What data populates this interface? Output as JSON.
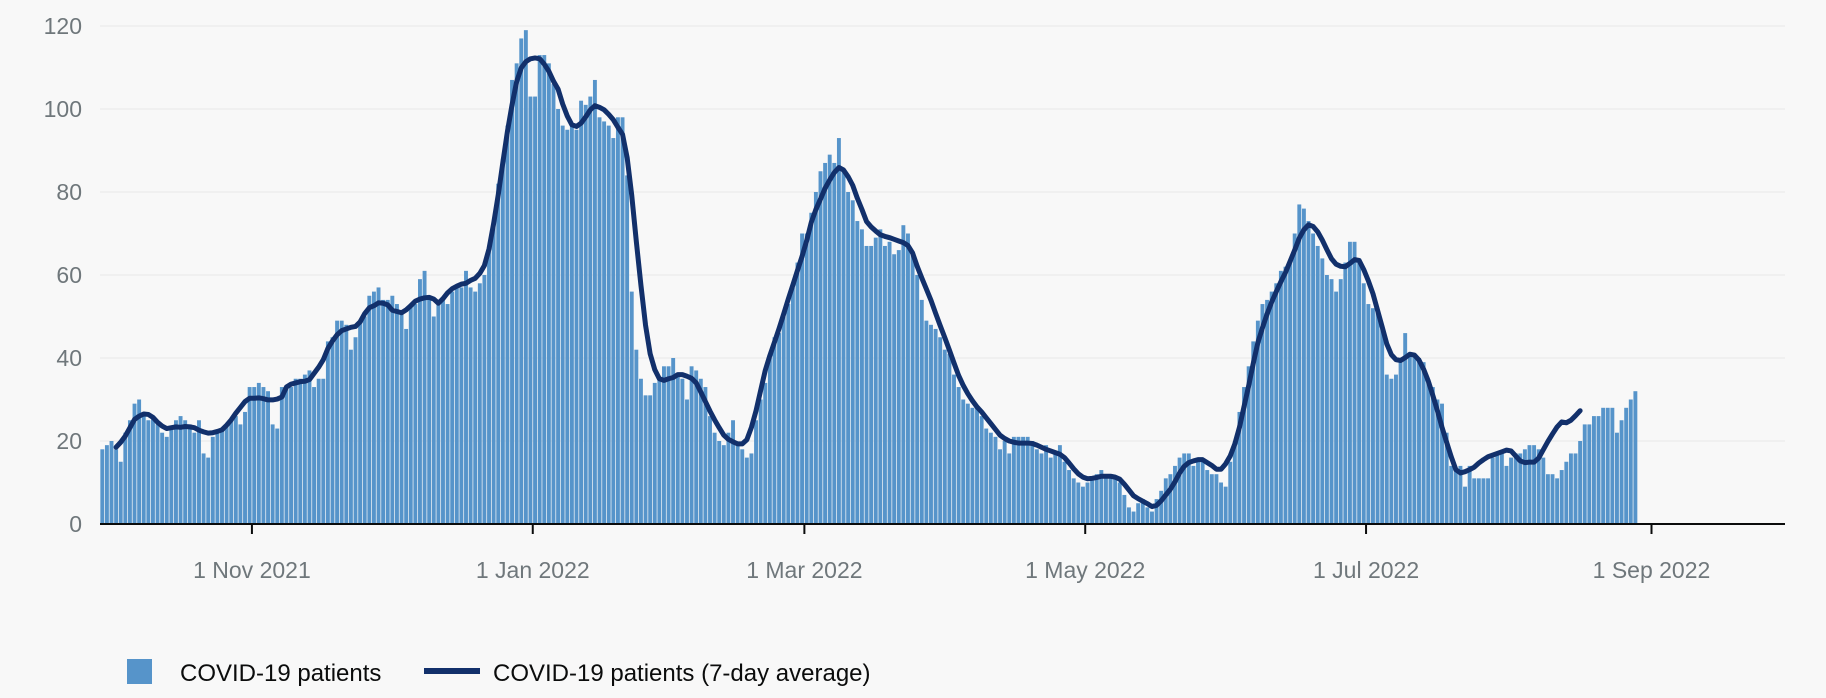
{
  "chart_data": {
    "type": "bar",
    "start_date": "2021-09-29",
    "end_date": "2022-09-29",
    "ylim": [
      0,
      120
    ],
    "y_ticks": [
      0,
      20,
      40,
      60,
      80,
      100,
      120
    ],
    "x_ticks": [
      {
        "date": "2021-11-01",
        "label": "1 Nov 2021"
      },
      {
        "date": "2022-01-01",
        "label": "1 Jan 2022"
      },
      {
        "date": "2022-03-01",
        "label": "1 Mar 2022"
      },
      {
        "date": "2022-05-01",
        "label": "1 May 2022"
      },
      {
        "date": "2022-07-01",
        "label": "1 Jul 2022"
      },
      {
        "date": "2022-09-01",
        "label": "1 Sep 2022"
      }
    ],
    "grid": true,
    "legend_position": "bottom-left",
    "colors": {
      "bars": "#5694ca",
      "line": "#12306b",
      "axis": "#0b0c0c",
      "grid": "#e8e8e8",
      "tick_text": "#6f777b"
    },
    "series": [
      {
        "name": "COVID-19 patients",
        "kind": "bar",
        "values": [
          18,
          19,
          20,
          18,
          15,
          22,
          25,
          29,
          30,
          27,
          25,
          26,
          24,
          22,
          21,
          23,
          25,
          26,
          25,
          24,
          22,
          25,
          17,
          16,
          21,
          22,
          23,
          24,
          25,
          26,
          24,
          27,
          33,
          33,
          34,
          33,
          32,
          24,
          23,
          33,
          33,
          33,
          35,
          35,
          36,
          37,
          33,
          35,
          35,
          44,
          45,
          49,
          49,
          48,
          42,
          45,
          49,
          50,
          55,
          56,
          57,
          54,
          54,
          55,
          53,
          51,
          47,
          53,
          53,
          59,
          61,
          54,
          50,
          54,
          54,
          53,
          56,
          57,
          57,
          61,
          57,
          56,
          58,
          60,
          67,
          73,
          82,
          88,
          96,
          107,
          111,
          117,
          119,
          103,
          103,
          113,
          113,
          111,
          106,
          100,
          96,
          95,
          96,
          95,
          102,
          101,
          103,
          107,
          98,
          97,
          96,
          93,
          98,
          98,
          84,
          56,
          42,
          35,
          31,
          31,
          34,
          35,
          38,
          38,
          40,
          36,
          35,
          30,
          38,
          37,
          35,
          33,
          26,
          22,
          20,
          19,
          22,
          25,
          19,
          18,
          16,
          17,
          25,
          30,
          34,
          40,
          45,
          46,
          50,
          53,
          57,
          63,
          70,
          70,
          75,
          80,
          85,
          87,
          89,
          87,
          93,
          85,
          80,
          78,
          73,
          71,
          67,
          67,
          69,
          71,
          67,
          68,
          65,
          66,
          72,
          70,
          65,
          60,
          54,
          49,
          48,
          47,
          45,
          42,
          41,
          36,
          33,
          30,
          29,
          28,
          28,
          26,
          23,
          22,
          21,
          18,
          20,
          17,
          21,
          21,
          21,
          21,
          20,
          18,
          17,
          19,
          16,
          17,
          19,
          15,
          13,
          11,
          10,
          9,
          10,
          11,
          12,
          13,
          12,
          12,
          11,
          10,
          7,
          4,
          3,
          5,
          6,
          4,
          3,
          6,
          8,
          11,
          12,
          14,
          16,
          17,
          17,
          14,
          15,
          15,
          13,
          12,
          12,
          10,
          9,
          15,
          20,
          27,
          33,
          38,
          44,
          49,
          53,
          54,
          56,
          58,
          61,
          62,
          63,
          70,
          77,
          76,
          73,
          70,
          67,
          64,
          60,
          59,
          56,
          59,
          63,
          68,
          68,
          64,
          58,
          53,
          52,
          52,
          47,
          36,
          35,
          36,
          40,
          46,
          41,
          41,
          40,
          39,
          34,
          33,
          30,
          29,
          22,
          14,
          13,
          14,
          9,
          14,
          11,
          11,
          11,
          11,
          16,
          17,
          17,
          14,
          16,
          17,
          17,
          18,
          19,
          19,
          18,
          16,
          12,
          12,
          11,
          13,
          15,
          17,
          17,
          20,
          24,
          24,
          26,
          26,
          28,
          28,
          28,
          22,
          25,
          28,
          30,
          32
        ]
      },
      {
        "name": "COVID-19 patients (7-day average)",
        "kind": "line",
        "values": [
          null,
          null,
          null,
          18.5,
          19.7,
          21.2,
          23.2,
          25.2,
          26.0,
          26.5,
          26.4,
          25.7,
          24.5,
          23.6,
          23.0,
          23.2,
          23.4,
          23.3,
          23.5,
          23.4,
          23.2,
          22.6,
          22.2,
          21.9,
          22.0,
          22.3,
          22.7,
          23.8,
          25.1,
          26.7,
          28.1,
          29.5,
          30.3,
          30.3,
          30.4,
          30.2,
          29.9,
          29.9,
          30.1,
          30.6,
          33.0,
          33.7,
          34.0,
          34.3,
          34.4,
          34.8,
          36.3,
          37.8,
          39.6,
          42.3,
          44.1,
          45.6,
          46.6,
          47.0,
          47.4,
          47.6,
          48.7,
          50.7,
          52.1,
          52.6,
          53.3,
          53.2,
          52.8,
          51.5,
          51.2,
          50.9,
          51.6,
          52.6,
          53.7,
          54.2,
          54.5,
          54.6,
          54.2,
          53.2,
          54.3,
          55.7,
          56.7,
          57.3,
          57.8,
          58.0,
          58.7,
          59.2,
          60.4,
          62.3,
          66.3,
          72.4,
          79.3,
          87.1,
          94.6,
          101.0,
          106.6,
          109.9,
          111.4,
          112.1,
          112.3,
          112.1,
          110.8,
          109.1,
          106.7,
          104.8,
          101.2,
          98.3,
          96.2,
          95.8,
          96.6,
          98.1,
          99.8,
          100.8,
          100.4,
          99.8,
          98.7,
          97.4,
          95.6,
          93.9,
          88.3,
          79.2,
          68.0,
          57.5,
          47.9,
          41.0,
          37.2,
          35.0,
          34.6,
          35.0,
          35.3,
          36.0,
          36.0,
          35.6,
          35.1,
          34.0,
          31.8,
          29.5,
          27.2,
          25.1,
          23.2,
          21.4,
          20.4,
          19.8,
          19.3,
          19.3,
          20.3,
          23.3,
          27.3,
          32.2,
          37.0,
          40.6,
          43.8,
          47.1,
          50.6,
          54.2,
          57.6,
          61.1,
          64.5,
          68.3,
          72.7,
          75.8,
          78.3,
          80.9,
          82.9,
          84.7,
          85.9,
          85.3,
          83.7,
          81.6,
          78.5,
          75.8,
          72.9,
          71.6,
          70.6,
          69.7,
          69.3,
          69.0,
          68.6,
          68.2,
          67.8,
          67.1,
          65.3,
          62.1,
          59.3,
          56.6,
          53.9,
          50.8,
          47.8,
          44.9,
          41.9,
          38.8,
          35.8,
          33.4,
          31.4,
          29.7,
          28.2,
          27.0,
          25.6,
          24.2,
          22.8,
          21.4,
          20.6,
          20.0,
          19.7,
          19.5,
          19.5,
          19.5,
          19.4,
          19.0,
          18.5,
          18.0,
          17.6,
          17.2,
          16.8,
          16.0,
          14.7,
          13.3,
          12.1,
          11.3,
          10.9,
          11.0,
          11.2,
          11.5,
          11.5,
          11.5,
          11.3,
          10.8,
          9.6,
          8.2,
          6.8,
          6.1,
          5.5,
          4.9,
          4.2,
          4.5,
          5.6,
          7.0,
          8.4,
          10.2,
          12.3,
          13.9,
          14.8,
          15.2,
          15.5,
          15.5,
          14.8,
          14.1,
          13.2,
          13.2,
          14.5,
          16.4,
          19.3,
          23.3,
          28.3,
          33.3,
          38.7,
          43.7,
          47.3,
          50.6,
          53.5,
          56.0,
          58.4,
          60.6,
          63.3,
          66.0,
          68.9,
          70.9,
          72.1,
          71.7,
          70.4,
          68.4,
          66.1,
          63.9,
          62.6,
          62.1,
          62.0,
          62.8,
          63.7,
          63.5,
          61.3,
          58.6,
          55.5,
          51.5,
          47.5,
          43.4,
          40.8,
          39.6,
          39.4,
          40.1,
          40.9,
          40.7,
          39.5,
          37.3,
          34.5,
          31.0,
          27.3,
          23.3,
          19.7,
          16.2,
          13.1,
          12.3,
          12.6,
          13.1,
          13.7,
          14.7,
          15.5,
          16.2,
          16.6,
          17.0,
          17.4,
          17.8,
          17.6,
          16.4,
          15.2,
          14.8,
          14.9,
          14.9,
          15.9,
          17.9,
          19.9,
          21.7,
          23.4,
          24.6,
          24.4,
          25.0,
          26.1,
          27.3
        ]
      }
    ]
  }
}
